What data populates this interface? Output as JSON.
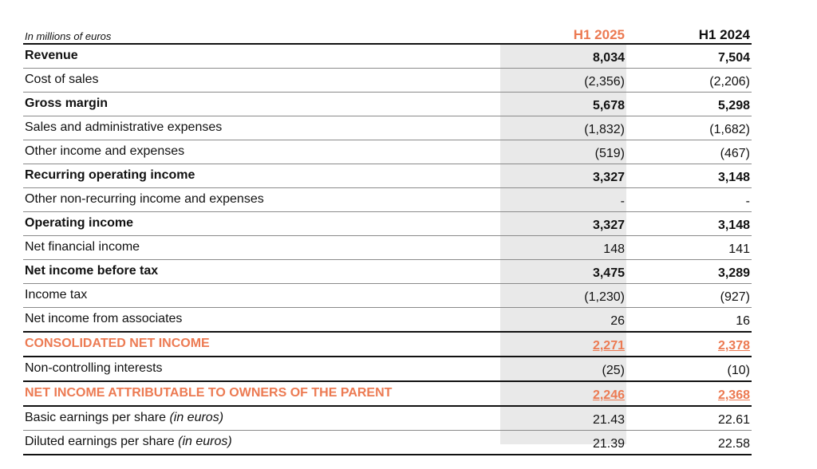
{
  "header": {
    "unit_label": "In millions of euros",
    "col1": "H1 2025",
    "col2": "H1 2024"
  },
  "rows": [
    {
      "label": "Revenue",
      "v1": "8,034",
      "v2": "7,504"
    },
    {
      "label": "Cost of sales",
      "v1": "(2,356)",
      "v2": "(2,206)"
    },
    {
      "label": "Gross margin",
      "v1": "5,678",
      "v2": "5,298"
    },
    {
      "label": "Sales and administrative expenses",
      "v1": "(1,832)",
      "v2": "(1,682)"
    },
    {
      "label": "Other income and expenses",
      "v1": "(519)",
      "v2": "(467)"
    },
    {
      "label": "Recurring operating income",
      "v1": "3,327",
      "v2": "3,148"
    },
    {
      "label": "Other non-recurring income and expenses",
      "v1": "-",
      "v2": "-"
    },
    {
      "label": "Operating income",
      "v1": "3,327",
      "v2": "3,148"
    },
    {
      "label": "Net financial income",
      "v1": "148",
      "v2": "141"
    },
    {
      "label": "Net income before tax",
      "v1": "3,475",
      "v2": "3,289"
    },
    {
      "label": "Income tax",
      "v1": "(1,230)",
      "v2": "(927)"
    },
    {
      "label": "Net income from associates",
      "v1": "26",
      "v2": "16"
    },
    {
      "label": "CONSOLIDATED NET INCOME",
      "v1": "2,271",
      "v2": "2,378"
    },
    {
      "label": "Non-controlling interests",
      "v1": "(25)",
      "v2": "(10)"
    },
    {
      "label": "NET INCOME ATTRIBUTABLE TO OWNERS OF THE PARENT",
      "v1": "2,246",
      "v2": "2,368"
    },
    {
      "label": "Basic earnings per share ",
      "label_italic": "(in euros)",
      "v1": "21.43",
      "v2": "22.61"
    },
    {
      "label": "Diluted earnings per share ",
      "label_italic": "(in euros)",
      "v1": "21.39",
      "v2": "22.58"
    }
  ],
  "colors": {
    "accent": "#ec7a52",
    "shade": "#e9e9e9"
  }
}
